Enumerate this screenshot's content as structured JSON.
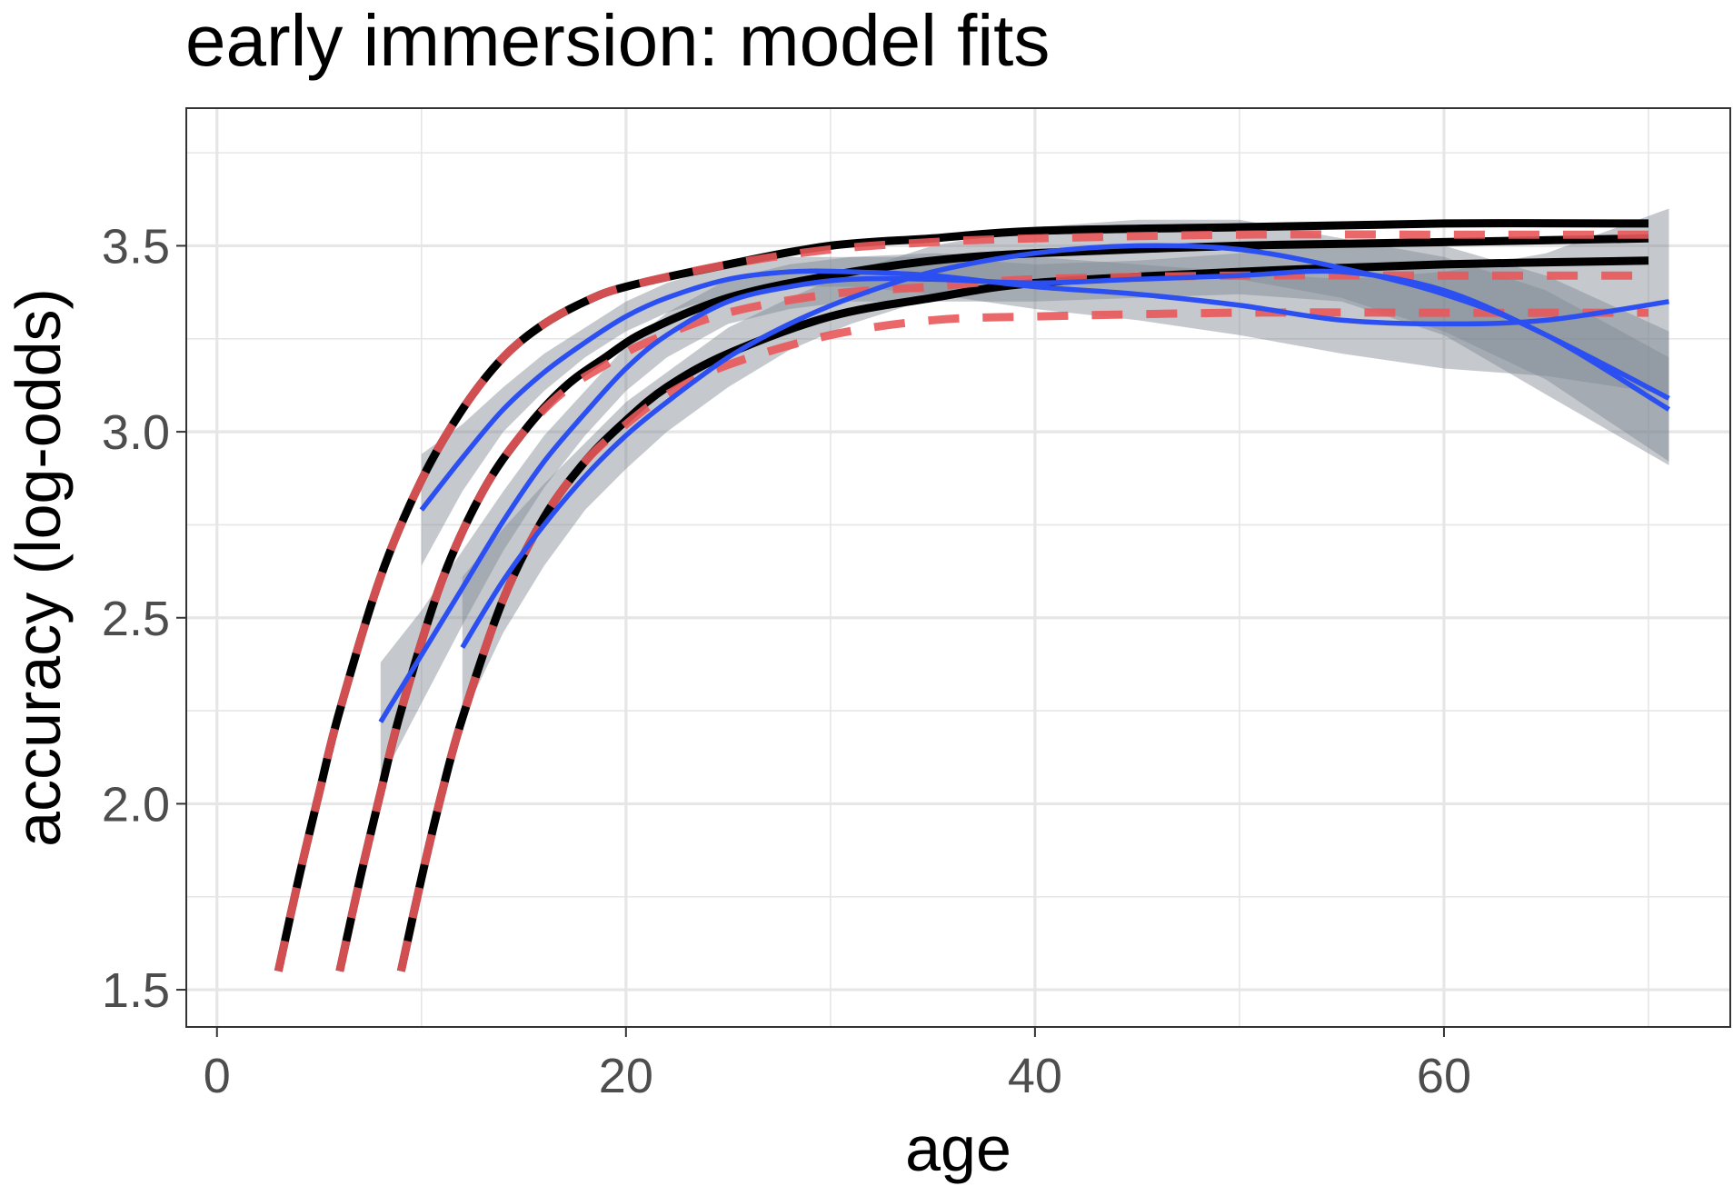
{
  "chart_data": {
    "type": "line",
    "title": "early immersion: model fits",
    "xlabel": "age",
    "ylabel": "accuracy (log-odds)",
    "xlim": [
      -1.5,
      74
    ],
    "ylim": [
      1.4,
      3.87
    ],
    "x_ticks": [
      0,
      20,
      40,
      60
    ],
    "x_tick_labels": [
      "0",
      "20",
      "40",
      "60"
    ],
    "y_ticks": [
      1.5,
      2.0,
      2.5,
      3.0,
      3.5
    ],
    "y_tick_labels": [
      "1.5",
      "2.0",
      "2.5",
      "3.0",
      "3.5"
    ],
    "grid": true,
    "legend": "none",
    "colors": {
      "model_fit": "#000000",
      "model_fit_dashed": "#e8585a",
      "smooth": "#2b4ff0",
      "ribbon": "#7f8893",
      "grid": "#e6e6e6",
      "panel_border": "#333333"
    },
    "model_fits": [
      {
        "x": [
          3,
          4,
          5,
          6,
          8,
          10,
          12,
          14,
          16,
          18,
          20,
          25,
          30,
          35,
          40,
          50,
          60,
          70
        ],
        "y": [
          1.55,
          1.8,
          2.03,
          2.25,
          2.61,
          2.87,
          3.06,
          3.2,
          3.29,
          3.35,
          3.39,
          3.45,
          3.49,
          3.51,
          3.52,
          3.53,
          3.53,
          3.53
        ]
      },
      {
        "x": [
          6,
          7,
          8,
          9,
          11,
          13,
          15,
          17,
          19,
          21,
          25,
          30,
          35,
          40,
          50,
          60,
          70
        ],
        "y": [
          1.55,
          1.8,
          2.03,
          2.25,
          2.6,
          2.84,
          3.0,
          3.11,
          3.18,
          3.24,
          3.32,
          3.37,
          3.39,
          3.41,
          3.42,
          3.42,
          3.42
        ]
      },
      {
        "x": [
          9,
          10,
          11,
          12,
          14,
          16,
          18,
          20,
          22,
          25,
          30,
          35,
          40,
          50,
          60,
          70
        ],
        "y": [
          1.55,
          1.8,
          2.03,
          2.23,
          2.55,
          2.77,
          2.92,
          3.02,
          3.1,
          3.18,
          3.26,
          3.3,
          3.31,
          3.32,
          3.32,
          3.32
        ]
      }
    ],
    "black_fits": [
      {
        "x": [
          3,
          4,
          5,
          6,
          8,
          10,
          12,
          14,
          16,
          18,
          20,
          25,
          30,
          35,
          40,
          50,
          60,
          70
        ],
        "y": [
          1.55,
          1.8,
          2.03,
          2.25,
          2.61,
          2.87,
          3.06,
          3.2,
          3.29,
          3.35,
          3.39,
          3.45,
          3.5,
          3.52,
          3.54,
          3.55,
          3.56,
          3.56
        ]
      },
      {
        "x": [
          6,
          7,
          8,
          9,
          11,
          13,
          15,
          17,
          19,
          21,
          25,
          30,
          35,
          40,
          50,
          60,
          70
        ],
        "y": [
          1.55,
          1.8,
          2.03,
          2.25,
          2.6,
          2.84,
          3.0,
          3.12,
          3.2,
          3.27,
          3.36,
          3.42,
          3.46,
          3.48,
          3.5,
          3.51,
          3.52
        ]
      },
      {
        "x": [
          9,
          10,
          11,
          12,
          14,
          16,
          18,
          20,
          22,
          25,
          30,
          35,
          40,
          50,
          60,
          70
        ],
        "y": [
          1.55,
          1.8,
          2.03,
          2.23,
          2.55,
          2.77,
          2.92,
          3.03,
          3.12,
          3.21,
          3.31,
          3.36,
          3.4,
          3.43,
          3.45,
          3.46
        ]
      }
    ],
    "smooth_series": [
      {
        "x": [
          10,
          12,
          14,
          16,
          18,
          20,
          22,
          25,
          28,
          31,
          35,
          40,
          45,
          50,
          55,
          60,
          65,
          71
        ],
        "y": [
          2.79,
          2.93,
          3.06,
          3.16,
          3.24,
          3.31,
          3.36,
          3.41,
          3.43,
          3.43,
          3.42,
          3.39,
          3.37,
          3.34,
          3.3,
          3.29,
          3.3,
          3.35
        ],
        "lower": [
          2.64,
          2.84,
          3.0,
          3.11,
          3.2,
          3.27,
          3.32,
          3.37,
          3.39,
          3.39,
          3.37,
          3.33,
          3.3,
          3.26,
          3.21,
          3.17,
          3.15,
          3.1
        ],
        "upper": [
          2.94,
          3.02,
          3.12,
          3.21,
          3.28,
          3.35,
          3.4,
          3.45,
          3.47,
          3.47,
          3.48,
          3.47,
          3.45,
          3.43,
          3.41,
          3.43,
          3.48,
          3.6
        ]
      },
      {
        "x": [
          8,
          10,
          12,
          14,
          16,
          18,
          20,
          22,
          25,
          28,
          31,
          35,
          40,
          45,
          50,
          55,
          60,
          65,
          71
        ],
        "y": [
          2.22,
          2.4,
          2.58,
          2.76,
          2.92,
          3.05,
          3.17,
          3.26,
          3.35,
          3.39,
          3.41,
          3.41,
          3.4,
          3.41,
          3.42,
          3.43,
          3.38,
          3.26,
          3.09
        ],
        "lower": [
          2.06,
          2.27,
          2.48,
          2.68,
          2.85,
          2.99,
          3.11,
          3.2,
          3.29,
          3.33,
          3.35,
          3.35,
          3.35,
          3.36,
          3.37,
          3.35,
          3.26,
          3.1,
          2.91
        ],
        "upper": [
          2.38,
          2.52,
          2.68,
          2.84,
          2.99,
          3.11,
          3.23,
          3.32,
          3.41,
          3.45,
          3.47,
          3.47,
          3.45,
          3.46,
          3.48,
          3.51,
          3.5,
          3.42,
          3.27
        ]
      },
      {
        "x": [
          12,
          14,
          16,
          18,
          20,
          22,
          25,
          28,
          31,
          35,
          40,
          45,
          50,
          55,
          60,
          65,
          71
        ],
        "y": [
          2.42,
          2.6,
          2.75,
          2.88,
          2.99,
          3.08,
          3.2,
          3.29,
          3.36,
          3.43,
          3.48,
          3.5,
          3.49,
          3.44,
          3.37,
          3.26,
          3.06
        ],
        "lower": [
          2.23,
          2.46,
          2.64,
          2.79,
          2.9,
          3.0,
          3.12,
          3.22,
          3.29,
          3.36,
          3.41,
          3.43,
          3.41,
          3.36,
          3.27,
          3.14,
          2.92
        ],
        "upper": [
          2.61,
          2.74,
          2.86,
          2.97,
          3.08,
          3.16,
          3.28,
          3.36,
          3.43,
          3.5,
          3.55,
          3.57,
          3.57,
          3.52,
          3.47,
          3.38,
          3.2
        ]
      }
    ]
  }
}
